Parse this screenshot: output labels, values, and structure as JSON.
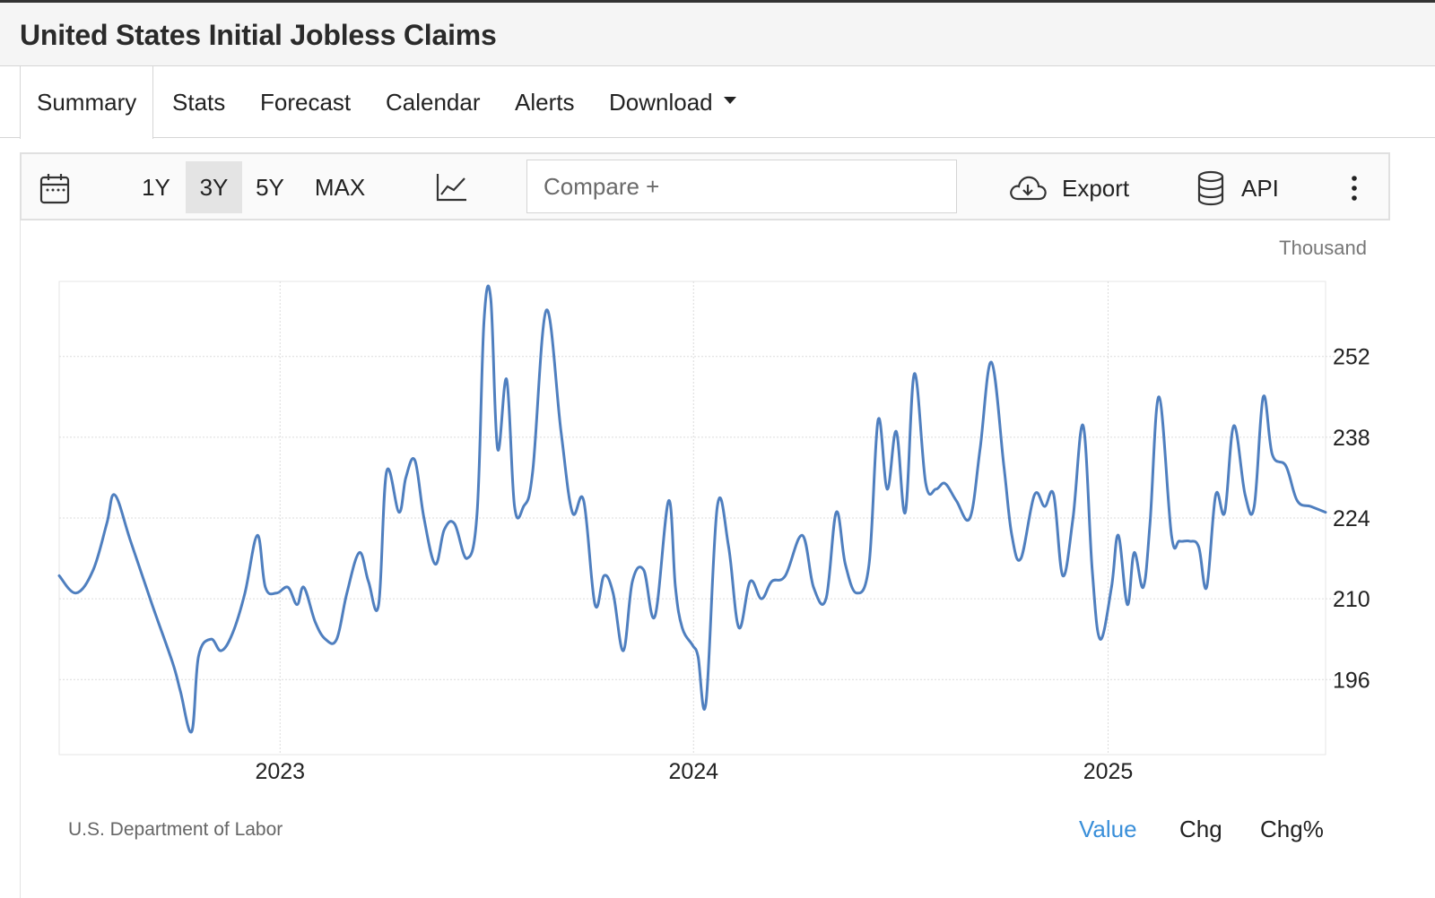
{
  "title": "United States Initial Jobless Claims",
  "tabs": [
    {
      "label": "Summary"
    },
    {
      "label": "Stats"
    },
    {
      "label": "Forecast"
    },
    {
      "label": "Calendar"
    },
    {
      "label": "Alerts"
    },
    {
      "label": "Download"
    }
  ],
  "active_tab": "Summary",
  "toolbar": {
    "ranges": [
      "1Y",
      "3Y",
      "5Y",
      "MAX"
    ],
    "active_range": "3Y",
    "compare_placeholder": "Compare +",
    "export_label": "Export",
    "api_label": "API"
  },
  "footer": {
    "source": "U.S. Department of Labor",
    "modes": [
      "Value",
      "Chg",
      "Chg%"
    ],
    "active_mode": "Value"
  },
  "colors": {
    "line": "#4f7fbf",
    "active_mode": "#3a8fd9"
  },
  "chart_data": {
    "type": "line",
    "unit_label": "Thousand",
    "ylim": [
      183,
      265
    ],
    "yticks": [
      196,
      210,
      224,
      238,
      252
    ],
    "xlim": [
      "2022-06-20",
      "2025-07-12"
    ],
    "xticks": [
      {
        "label": "2023",
        "date": "2023-01-01"
      },
      {
        "label": "2024",
        "date": "2024-01-01"
      },
      {
        "label": "2025",
        "date": "2025-01-01"
      }
    ],
    "grid": true,
    "series": [
      {
        "x": [
          "2022-06-20",
          "2022-07-05",
          "2022-07-20",
          "2022-08-01",
          "2022-08-08",
          "2022-08-22",
          "2022-09-10",
          "2022-09-28",
          "2022-10-05",
          "2022-10-15",
          "2022-10-21",
          "2022-11-01",
          "2022-11-10",
          "2022-11-20",
          "2022-12-01",
          "2022-12-12",
          "2022-12-19",
          "2022-12-29",
          "2023-01-08",
          "2023-01-16",
          "2023-01-22",
          "2023-02-01",
          "2023-02-10",
          "2023-02-20",
          "2023-03-01",
          "2023-03-12",
          "2023-03-20",
          "2023-03-29",
          "2023-04-05",
          "2023-04-16",
          "2023-04-22",
          "2023-04-30",
          "2023-05-08",
          "2023-05-18",
          "2023-05-26",
          "2023-06-04",
          "2023-06-15",
          "2023-06-24",
          "2023-06-30",
          "2023-07-06",
          "2023-07-12",
          "2023-07-20",
          "2023-07-27",
          "2023-08-04",
          "2023-08-12",
          "2023-08-24",
          "2023-09-06",
          "2023-09-16",
          "2023-09-26",
          "2023-10-06",
          "2023-10-14",
          "2023-10-22",
          "2023-10-31",
          "2023-11-08",
          "2023-11-18",
          "2023-11-28",
          "2023-12-10",
          "2023-12-16",
          "2023-12-22",
          "2023-12-31",
          "2024-01-05",
          "2024-01-12",
          "2024-01-22",
          "2024-02-01",
          "2024-02-10",
          "2024-02-20",
          "2024-03-01",
          "2024-03-10",
          "2024-03-22",
          "2024-04-06",
          "2024-04-16",
          "2024-04-27",
          "2024-05-06",
          "2024-05-14",
          "2024-05-24",
          "2024-06-04",
          "2024-06-12",
          "2024-06-20",
          "2024-06-28",
          "2024-07-06",
          "2024-07-14",
          "2024-07-24",
          "2024-08-02",
          "2024-08-10",
          "2024-08-20",
          "2024-09-01",
          "2024-09-10",
          "2024-09-20",
          "2024-10-01",
          "2024-10-08",
          "2024-10-16",
          "2024-10-28",
          "2024-11-06",
          "2024-11-14",
          "2024-11-22",
          "2024-12-01",
          "2024-12-10",
          "2024-12-18",
          "2024-12-25",
          "2025-01-04",
          "2025-01-10",
          "2025-01-18",
          "2025-01-24",
          "2025-02-01",
          "2025-02-07",
          "2025-02-15",
          "2025-02-26",
          "2025-03-05",
          "2025-03-14",
          "2025-03-22",
          "2025-03-29",
          "2025-04-06",
          "2025-04-14",
          "2025-04-22",
          "2025-05-02",
          "2025-05-10",
          "2025-05-18",
          "2025-05-26",
          "2025-06-07",
          "2025-06-17",
          "2025-06-29",
          "2025-07-12"
        ],
        "y": [
          214,
          211,
          215,
          223,
          228,
          220,
          209,
          199,
          194,
          187,
          200,
          203,
          201,
          204,
          211,
          221,
          212,
          211,
          212,
          209,
          212,
          206,
          203,
          203,
          211,
          218,
          213,
          209,
          232,
          225,
          231,
          234,
          224,
          216,
          222,
          223,
          217,
          225,
          258,
          262,
          236,
          248,
          226,
          226,
          232,
          260,
          239,
          225,
          227,
          209,
          214,
          211,
          201,
          213,
          215,
          207,
          227,
          212,
          205,
          202,
          200,
          192,
          226,
          219,
          205,
          213,
          210,
          213,
          214,
          221,
          212,
          210,
          225,
          216,
          211,
          216,
          241,
          229,
          239,
          225,
          249,
          230,
          229,
          230,
          227,
          224,
          236,
          251,
          233,
          221,
          217,
          228,
          226,
          228,
          214,
          224,
          240,
          215,
          203,
          212,
          221,
          209,
          218,
          212,
          223,
          245,
          221,
          220,
          220,
          219,
          212,
          228,
          225,
          240,
          228,
          226,
          245,
          235,
          233,
          227,
          226,
          225
        ]
      }
    ]
  }
}
